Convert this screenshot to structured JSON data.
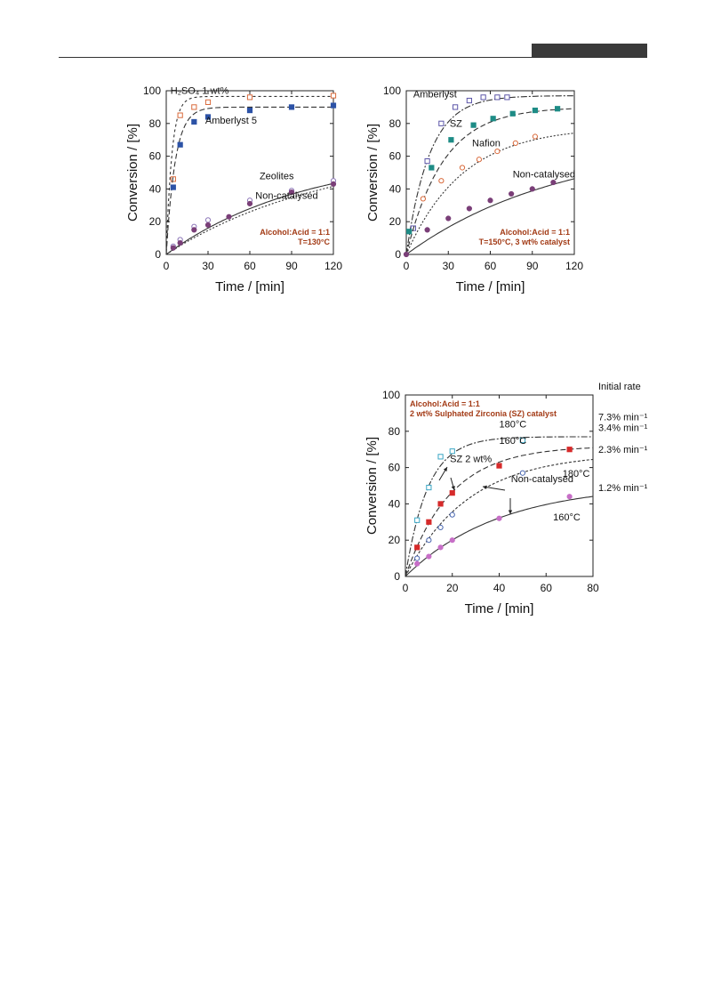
{
  "header": {
    "accent": "#3a3a3a"
  },
  "chart_data": [
    {
      "type": "scatter",
      "title": "",
      "xlabel": "Time / [min]",
      "ylabel": "Conversion / [%]",
      "xlim": [
        0,
        120
      ],
      "ylim": [
        0,
        100
      ],
      "xticks": [
        0,
        30,
        60,
        90,
        120
      ],
      "yticks": [
        0,
        20,
        40,
        60,
        80,
        100
      ],
      "grid": false,
      "conditions": [
        "Alcohol:Acid = 1:1",
        "T=130°C"
      ],
      "series": [
        {
          "name": "H₂SO₄ 1 wt%",
          "marker": "square-open",
          "color": "#d9693a",
          "dash": "3,3",
          "x": [
            5,
            10,
            20,
            30,
            60,
            120
          ],
          "y": [
            46,
            85,
            90,
            93,
            96,
            97
          ],
          "fit_rate": 0.25,
          "fit_max": 96.5
        },
        {
          "name": "Amberlyst 5",
          "marker": "square-filled",
          "color": "#2c52a6",
          "dash": "6,3",
          "x": [
            5,
            10,
            20,
            30,
            60,
            90,
            120
          ],
          "y": [
            41,
            67,
            81,
            84,
            88,
            90,
            91
          ],
          "fit_rate": 0.155,
          "fit_max": 90
        },
        {
          "name": "Zeolites",
          "marker": "circle-open",
          "color": "#8c76b8",
          "dash": "2,2",
          "x": [
            5,
            10,
            20,
            30,
            60,
            90,
            120
          ],
          "y": [
            5,
            9,
            17,
            21,
            33,
            39,
            45
          ],
          "fit_rate": 0.0085,
          "fit_max": 65
        },
        {
          "name": "Non-catalysed",
          "marker": "circle-filled",
          "color": "#7a3f78",
          "dash": "",
          "x": [
            5,
            10,
            20,
            30,
            45,
            60,
            90,
            120
          ],
          "y": [
            4,
            7,
            15,
            18,
            23,
            31,
            38,
            43
          ],
          "fit_rate": 0.01,
          "fit_max": 62
        }
      ],
      "annotations": [
        {
          "text": "H₂SO₄ 1 wt%",
          "x": 3,
          "y": 98
        },
        {
          "text": "Amberlyst 5",
          "x": 28,
          "y": 80
        },
        {
          "text": "Zeolites",
          "x": 67,
          "y": 46
        },
        {
          "text": "Non-catalysed",
          "x": 64,
          "y": 34
        }
      ]
    },
    {
      "type": "scatter",
      "title": "",
      "xlabel": "Time / [min]",
      "ylabel": "Conversion / [%]",
      "xlim": [
        0,
        120
      ],
      "ylim": [
        0,
        100
      ],
      "xticks": [
        0,
        30,
        60,
        90,
        120
      ],
      "yticks": [
        0,
        20,
        40,
        60,
        80,
        100
      ],
      "grid": false,
      "conditions": [
        "Alcohol:Acid = 1:1",
        "T=150°C, 3 wt% catalyst"
      ],
      "series": [
        {
          "name": "Amberlyst",
          "marker": "square-open",
          "color": "#5b55a8",
          "dash": "7,2,2,2",
          "x": [
            5,
            15,
            25,
            35,
            45,
            55,
            65,
            72
          ],
          "y": [
            16,
            57,
            80,
            90,
            94,
            96,
            96,
            96
          ],
          "fit_rate": 0.06,
          "fit_max": 97
        },
        {
          "name": "SZ",
          "marker": "square-filled",
          "color": "#1e8c86",
          "dash": "6,3",
          "x": [
            2,
            18,
            32,
            48,
            62,
            76,
            92,
            108
          ],
          "y": [
            14,
            53,
            70,
            79,
            83,
            86,
            88,
            89
          ],
          "fit_rate": 0.038,
          "fit_max": 90
        },
        {
          "name": "Nafion",
          "marker": "circle-open",
          "color": "#d9693a",
          "dash": "2,2",
          "x": [
            12,
            25,
            40,
            52,
            65,
            78,
            92
          ],
          "y": [
            34,
            45,
            53,
            58,
            63,
            68,
            72
          ],
          "fit_rate": 0.025,
          "fit_max": 78
        },
        {
          "name": "Non-catalysed",
          "marker": "circle-filled",
          "color": "#7a3f78",
          "dash": "",
          "x": [
            0,
            15,
            30,
            45,
            60,
            75,
            90,
            105
          ],
          "y": [
            0,
            15,
            22,
            28,
            33,
            37,
            40,
            44
          ],
          "fit_rate": 0.009,
          "fit_max": 70
        }
      ],
      "annotations": [
        {
          "text": "Amberlyst",
          "x": 5,
          "y": 96
        },
        {
          "text": "SZ",
          "x": 31,
          "y": 78
        },
        {
          "text": "Nafion",
          "x": 47,
          "y": 66
        },
        {
          "text": "Non-catalysed",
          "x": 76,
          "y": 47
        }
      ]
    },
    {
      "type": "scatter",
      "title": "",
      "xlabel": "Time / [min]",
      "ylabel": "Conversion / [%]",
      "xlim": [
        0,
        80
      ],
      "ylim": [
        0,
        100
      ],
      "xticks": [
        0,
        20,
        40,
        60,
        80
      ],
      "yticks": [
        0,
        20,
        40,
        60,
        80,
        100
      ],
      "grid": false,
      "conditions": [
        "Alcohol:Acid = 1:1",
        "2 wt% Sulphated Zirconia (SZ) catalyst"
      ],
      "series": [
        {
          "name": "SZ 2 wt% 180°C",
          "marker": "square-open",
          "color": "#3aa6c4",
          "dash": "7,2,2,2",
          "x": [
            5,
            10,
            15,
            20,
            50
          ],
          "y": [
            31,
            49,
            66,
            69,
            75
          ],
          "fit_rate": 0.105,
          "fit_max": 77
        },
        {
          "name": "SZ 2 wt% 160°C",
          "marker": "square-filled",
          "color": "#d62b2b",
          "dash": "6,3",
          "x": [
            5,
            10,
            15,
            20,
            40,
            70
          ],
          "y": [
            16,
            30,
            40,
            46,
            61,
            70
          ],
          "fit_rate": 0.052,
          "fit_max": 72
        },
        {
          "name": "Non-catalysed 180°C",
          "marker": "circle-open",
          "color": "#4866b0",
          "dash": "3,2",
          "x": [
            5,
            10,
            15,
            20,
            50
          ],
          "y": [
            10,
            20,
            27,
            34,
            57
          ],
          "fit_rate": 0.037,
          "fit_max": 68
        },
        {
          "name": "Non-catalysed 160°C",
          "marker": "circle-filled",
          "color": "#c76fc7",
          "dash": "",
          "x": [
            5,
            10,
            15,
            20,
            40,
            70
          ],
          "y": [
            7,
            11,
            16,
            20,
            32,
            44
          ],
          "fit_rate": 0.025,
          "fit_max": 51
        }
      ],
      "annotations": [
        {
          "text": "180°C",
          "x": 40,
          "y": 82
        },
        {
          "text": "160°C",
          "x": 40,
          "y": 73
        },
        {
          "text": "SZ 2 wt%",
          "x": 19,
          "y": 63
        },
        {
          "text": "180°C",
          "x": 67,
          "y": 55
        },
        {
          "text": "Non-catalysed",
          "x": 45,
          "y": 52
        },
        {
          "text": "160°C",
          "x": 63,
          "y": 31
        }
      ],
      "side_labels": [
        {
          "text": "Initial rate",
          "y": 105
        },
        {
          "text": "7.3% min⁻¹",
          "y": 88
        },
        {
          "text": "3.4% min⁻¹",
          "y": 82
        },
        {
          "text": "2.3% min⁻¹",
          "y": 70
        },
        {
          "text": "1.2% min⁻¹",
          "y": 49
        }
      ]
    }
  ]
}
